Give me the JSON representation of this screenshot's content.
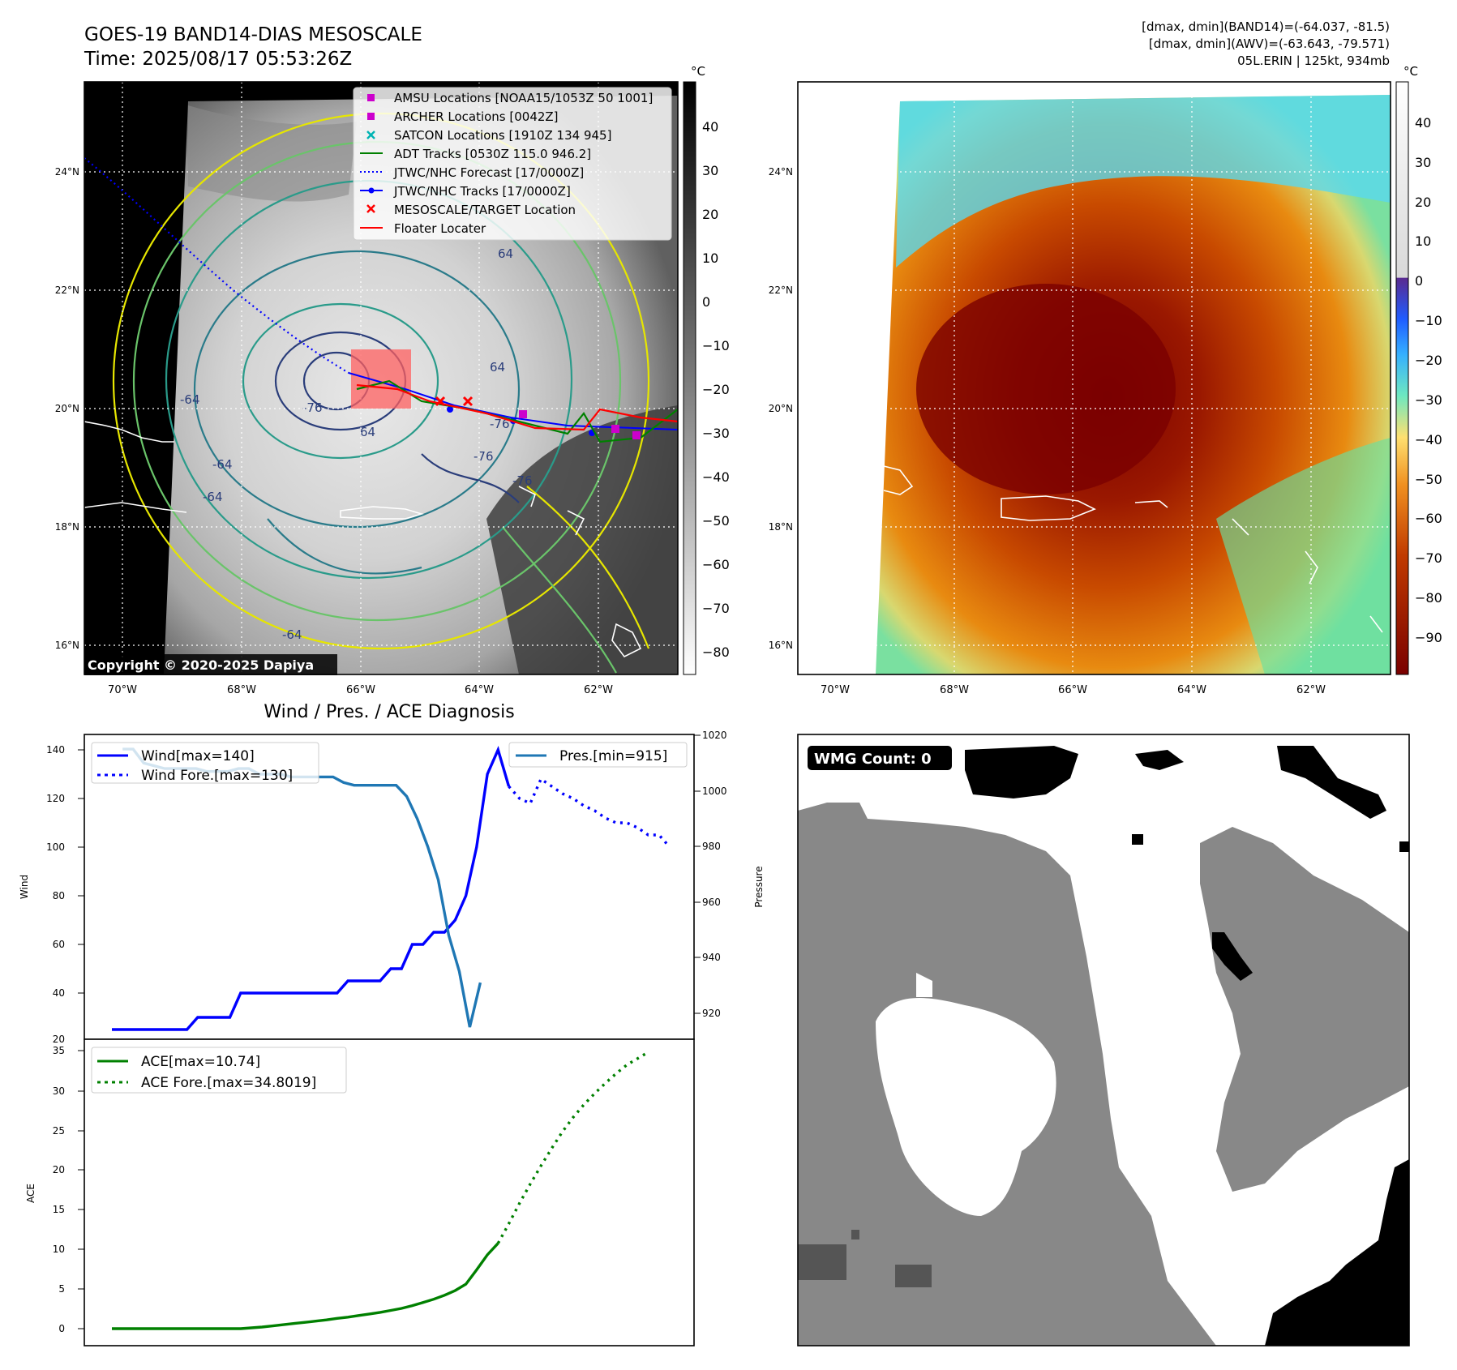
{
  "header": {
    "title_line1": "GOES-19 BAND14-DIAS MESOSCALE",
    "title_line2": "Time: 2025/08/17 05:53:26Z",
    "stats_line1": "[dmax, dmin](BAND14)=(-64.037, -81.5)",
    "stats_line2": "[dmax, dmin](AWV)=(-63.643, -79.571)",
    "stats_line3": "05L.ERIN | 125kt, 934mb"
  },
  "map_common": {
    "lat_labels": [
      "24°N",
      "22°N",
      "20°N",
      "18°N",
      "16°N"
    ],
    "lon_labels_left": [
      "70°W",
      "68°W",
      "66°W",
      "64°W",
      "62°W"
    ],
    "lon_labels_right": [
      "70°W",
      "68°W",
      "66°W",
      "64°W",
      "62°W"
    ],
    "unit": "°C"
  },
  "ir_panel": {
    "colorbar_ticks": [
      "40",
      "30",
      "20",
      "10",
      "0",
      "−10",
      "−20",
      "−30",
      "−40",
      "−50",
      "−60",
      "−70",
      "−80"
    ],
    "copyright": "Copyright © 2020-2025 Dapiya",
    "contour_labels": [
      "-76",
      "64",
      "-64",
      "64",
      "-76",
      "-76",
      "-76",
      "64",
      "-64",
      "-64",
      "-64"
    ],
    "legend": [
      {
        "label": "AMSU Locations [NOAA15/1053Z 50 1001]",
        "color": "#cc00cc",
        "marker": "square"
      },
      {
        "label": "ARCHER Locations [0042Z]",
        "color": "#cc00cc",
        "marker": "square"
      },
      {
        "label": "SATCON Locations [1910Z 134 945]",
        "color": "#00b3b3",
        "marker": "x"
      },
      {
        "label": "ADT Tracks [0530Z 115.0 946.2]",
        "color": "#008000",
        "marker": "line"
      },
      {
        "label": "JTWC/NHC Forecast [17/0000Z]",
        "color": "#0000ff",
        "marker": "dotted"
      },
      {
        "label": "JTWC/NHC Tracks [17/0000Z]",
        "color": "#0000ff",
        "marker": "line-dot"
      },
      {
        "label": "MESOSCALE/TARGET Location",
        "color": "#ff0000",
        "marker": "x"
      },
      {
        "label": "Floater Locater",
        "color": "#ff0000",
        "marker": "line"
      }
    ]
  },
  "awv_panel": {
    "colorbar_ticks": [
      "40",
      "30",
      "20",
      "10",
      "0",
      "−10",
      "−20",
      "−30",
      "−40",
      "−50",
      "−60",
      "−70",
      "−80",
      "−90"
    ]
  },
  "diagnosis": {
    "title": "Wind / Pres. / ACE Diagnosis",
    "wind_ylabel": "Wind",
    "pres_ylabel": "Pressure",
    "ace_ylabel": "ACE",
    "wind_ticks": [
      "140",
      "120",
      "100",
      "80",
      "60",
      "40",
      "20"
    ],
    "pres_ticks": [
      "1020",
      "1000",
      "980",
      "960",
      "940",
      "920"
    ],
    "ace_ticks": [
      "35",
      "30",
      "25",
      "20",
      "15",
      "10",
      "5",
      "0"
    ],
    "legend_wind": "Wind[max=140]",
    "legend_wind_fore": "Wind Fore.[max=130]",
    "legend_pres": "Pres.[min=915]",
    "legend_ace": "ACE[max=10.74]",
    "legend_ace_fore": "ACE Fore.[max=34.8019]"
  },
  "wmg_panel": {
    "label": "WMG Count: 0"
  },
  "chart_data": [
    {
      "type": "line",
      "title": "Wind / Pres. / ACE Diagnosis",
      "ylabel": "Wind",
      "ylim": [
        20,
        145
      ],
      "series": [
        {
          "name": "Wind[max=140]",
          "style": "solid",
          "color": "#0000ff",
          "values": [
            25,
            25,
            25,
            25,
            25,
            25,
            25,
            25,
            30,
            30,
            30,
            30,
            40,
            40,
            40,
            40,
            40,
            40,
            40,
            40,
            40,
            40,
            45,
            45,
            45,
            45,
            50,
            50,
            60,
            60,
            65,
            65,
            70,
            80,
            100,
            130,
            140,
            125
          ]
        },
        {
          "name": "Wind Fore.[max=130]",
          "style": "dotted",
          "color": "#0000ff",
          "values": [
            125,
            120,
            118,
            128,
            125,
            122,
            120,
            117,
            115,
            112,
            110,
            110,
            108,
            105,
            105,
            100
          ]
        }
      ]
    },
    {
      "type": "line",
      "ylabel": "Pressure",
      "ylim": [
        910,
        1020
      ],
      "series": [
        {
          "name": "Pres.[min=915]",
          "style": "solid",
          "color": "#1f77b4",
          "values": [
            1015,
            1015,
            1010,
            1009,
            1008,
            1008,
            1008,
            1008,
            1007,
            1007,
            1007,
            1008,
            1008,
            1006,
            1006,
            1006,
            1005,
            1005,
            1005,
            1005,
            1005,
            1003,
            1002,
            1002,
            1002,
            1002,
            1002,
            998,
            990,
            980,
            968,
            948,
            935,
            915,
            931
          ]
        }
      ]
    },
    {
      "type": "line",
      "ylabel": "ACE",
      "ylim": [
        -1,
        35
      ],
      "series": [
        {
          "name": "ACE[max=10.74]",
          "style": "solid",
          "color": "#008000",
          "values": [
            0,
            0,
            0,
            0,
            0,
            0,
            0,
            0,
            0,
            0,
            0,
            0,
            0,
            0.1,
            0.2,
            0.35,
            0.5,
            0.65,
            0.8,
            0.95,
            1.1,
            1.3,
            1.45,
            1.65,
            1.85,
            2.05,
            2.3,
            2.55,
            2.9,
            3.3,
            3.7,
            4.2,
            4.8,
            5.6,
            7.4,
            9.3,
            10.74
          ]
        },
        {
          "name": "ACE Fore.[max=34.8019]",
          "style": "dotted",
          "color": "#008000",
          "values": [
            10.74,
            13.2,
            15.8,
            18.2,
            20.5,
            22.7,
            24.8,
            26.6,
            28.2,
            29.6,
            30.9,
            32.1,
            33.2,
            34.0,
            34.8019
          ]
        }
      ]
    }
  ]
}
